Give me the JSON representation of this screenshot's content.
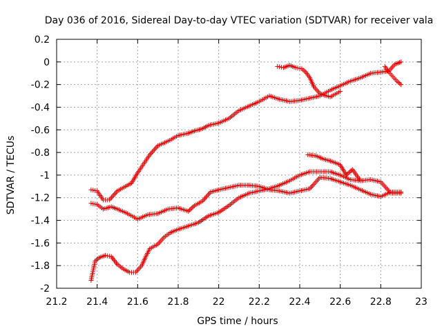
{
  "chart_data": {
    "type": "scatter",
    "title": "Day 036 of 2016, Sidereal Day-to-day VTEC variation (SDTVAR) for receiver vala",
    "xlabel": "GPS time / hours",
    "ylabel": "SDTVAR / TECUs",
    "xlim": [
      21.2,
      23
    ],
    "ylim": [
      -2,
      0.2
    ],
    "xticks": [
      21.2,
      21.4,
      21.6,
      21.8,
      22,
      22.2,
      22.4,
      22.6,
      22.8,
      23
    ],
    "xtick_labels": [
      "21.2",
      "21.4",
      "21.6",
      "21.8",
      "22",
      "22.2",
      "22.4",
      "22.6",
      "22.8",
      "23"
    ],
    "yticks": [
      -2,
      -1.8,
      -1.6,
      -1.4,
      -1.2,
      -1,
      -0.8,
      -0.6,
      -0.4,
      -0.2,
      0,
      0.2
    ],
    "ytick_labels": [
      "-2",
      "-1.8",
      "-1.6",
      "-1.4",
      "-1.2",
      "-1",
      "-0.8",
      "-0.6",
      "-0.4",
      "-0.2",
      "0",
      "0.2"
    ],
    "grid": true,
    "marker": "+",
    "marker_color": "#e00000",
    "series": [
      {
        "name": "trace-upper",
        "x": [
          21.37,
          21.4,
          21.43,
          21.46,
          21.5,
          21.54,
          21.57,
          21.6,
          21.63,
          21.66,
          21.7,
          21.75,
          21.8,
          21.85,
          21.88,
          21.92,
          21.95,
          22.0,
          22.05,
          22.1,
          22.15,
          22.2,
          22.25,
          22.3,
          22.35,
          22.4,
          22.45,
          22.5,
          22.55,
          22.6,
          22.65,
          22.7,
          22.75,
          22.8,
          22.84,
          22.87,
          22.9
        ],
        "y": [
          -1.13,
          -1.14,
          -1.22,
          -1.22,
          -1.14,
          -1.1,
          -1.07,
          -0.98,
          -0.9,
          -0.82,
          -0.74,
          -0.7,
          -0.65,
          -0.63,
          -0.61,
          -0.59,
          -0.56,
          -0.54,
          -0.5,
          -0.43,
          -0.39,
          -0.35,
          -0.3,
          -0.33,
          -0.35,
          -0.34,
          -0.32,
          -0.3,
          -0.25,
          -0.21,
          -0.17,
          -0.14,
          -0.1,
          -0.09,
          -0.08,
          -0.02,
          0.0
        ]
      },
      {
        "name": "trace-middle",
        "x": [
          21.37,
          21.4,
          21.43,
          21.47,
          21.5,
          21.55,
          21.6,
          21.65,
          21.7,
          21.75,
          21.8,
          21.85,
          21.88,
          21.92,
          21.96,
          22.0,
          22.05,
          22.1,
          22.15,
          22.2,
          22.25,
          22.3,
          22.35,
          22.4,
          22.45,
          22.5,
          22.55,
          22.6,
          22.65,
          22.7,
          22.75,
          22.8,
          22.85,
          22.9
        ],
        "y": [
          -1.25,
          -1.26,
          -1.3,
          -1.28,
          -1.3,
          -1.34,
          -1.39,
          -1.35,
          -1.34,
          -1.3,
          -1.29,
          -1.32,
          -1.27,
          -1.23,
          -1.15,
          -1.13,
          -1.11,
          -1.09,
          -1.09,
          -1.1,
          -1.13,
          -1.14,
          -1.16,
          -1.14,
          -1.12,
          -1.02,
          -1.03,
          -1.06,
          -1.09,
          -1.13,
          -1.17,
          -1.19,
          -1.15,
          -1.15
        ]
      },
      {
        "name": "trace-lower",
        "x": [
          21.37,
          21.39,
          21.41,
          21.44,
          21.47,
          21.5,
          21.53,
          21.56,
          21.59,
          21.62,
          21.64,
          21.66,
          21.7,
          21.73,
          21.76,
          21.8,
          21.85,
          21.9,
          21.95,
          22.0,
          22.05,
          22.1,
          22.15,
          22.2,
          22.25,
          22.3,
          22.35,
          22.4,
          22.45,
          22.5,
          22.55,
          22.6,
          22.65,
          22.7,
          22.75,
          22.8,
          22.85,
          22.9
        ],
        "y": [
          -1.93,
          -1.76,
          -1.73,
          -1.71,
          -1.72,
          -1.79,
          -1.83,
          -1.86,
          -1.86,
          -1.8,
          -1.72,
          -1.65,
          -1.61,
          -1.55,
          -1.51,
          -1.48,
          -1.45,
          -1.42,
          -1.36,
          -1.33,
          -1.27,
          -1.2,
          -1.16,
          -1.14,
          -1.12,
          -1.09,
          -1.05,
          -1.0,
          -0.97,
          -0.97,
          -0.97,
          -1.0,
          -1.04,
          -1.05,
          -1.04,
          -1.06,
          -1.16,
          -1.16
        ]
      },
      {
        "name": "segment-upper-right",
        "x": [
          22.29,
          22.32,
          22.35,
          22.38,
          22.41,
          22.43,
          22.45,
          22.47,
          22.5,
          22.55,
          22.6
        ],
        "y": [
          -0.04,
          -0.05,
          -0.03,
          -0.05,
          -0.06,
          -0.09,
          -0.14,
          -0.22,
          -0.28,
          -0.31,
          -0.26
        ]
      },
      {
        "name": "segment-lower-right",
        "x": [
          22.44,
          22.48,
          22.52,
          22.56,
          22.6,
          22.63,
          22.66,
          22.7
        ],
        "y": [
          -0.82,
          -0.83,
          -0.86,
          -0.88,
          -0.91,
          -1.0,
          -0.95,
          -1.05
        ]
      },
      {
        "name": "segment-top-end",
        "x": [
          22.82,
          22.84,
          22.86,
          22.88,
          22.9
        ],
        "y": [
          -0.04,
          -0.09,
          -0.13,
          -0.17,
          -0.2
        ]
      }
    ]
  }
}
